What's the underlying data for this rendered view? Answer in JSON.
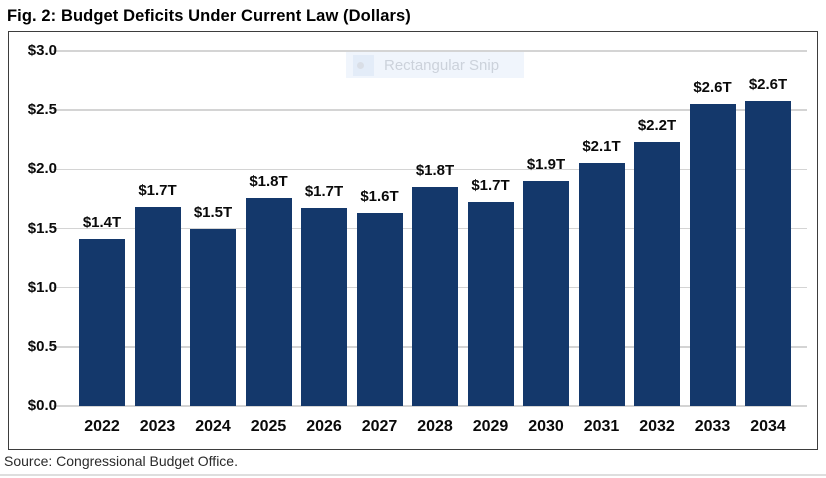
{
  "title": "Fig. 2: Budget Deficits Under Current Law (Dollars)",
  "source": "Source: Congressional Budget Office.",
  "overlay": {
    "tooltip_text": "Rectangular Snip"
  },
  "colors": {
    "bar": "#14386B",
    "gridline": "#D4D4D4",
    "chart_border": "#3D3D3D",
    "text": "#0A0A0A",
    "tooltip_bg": "#F0F5FC",
    "tooltip_text": "#CCD2DB"
  },
  "chart_data": {
    "type": "bar",
    "title": "Fig. 2: Budget Deficits Under Current Law (Dollars)",
    "categories": [
      "2022",
      "2023",
      "2024",
      "2025",
      "2026",
      "2027",
      "2028",
      "2029",
      "2030",
      "2031",
      "2032",
      "2033",
      "2034"
    ],
    "values": [
      1.41,
      1.68,
      1.5,
      1.76,
      1.67,
      1.63,
      1.85,
      1.72,
      1.9,
      2.05,
      2.23,
      2.55,
      2.58
    ],
    "bar_labels": [
      "$1.4T",
      "$1.7T",
      "$1.5T",
      "$1.8T",
      "$1.7T",
      "$1.6T",
      "$1.8T",
      "$1.7T",
      "$1.9T",
      "$2.1T",
      "$2.2T",
      "$2.6T",
      "$2.6T"
    ],
    "xlabel": "",
    "ylabel": "",
    "ylim": [
      0,
      3.0
    ],
    "y_tick_values": [
      0,
      0.5,
      1.0,
      1.5,
      2.0,
      2.5,
      3.0
    ],
    "y_tick_labels": [
      "$0.0",
      "$0.5",
      "$1.0",
      "$1.5",
      "$2.0",
      "$2.5",
      "$3.0"
    ],
    "grid": true,
    "legend": false,
    "bar_color": "#14386B",
    "source": "Source: Congressional Budget Office."
  }
}
